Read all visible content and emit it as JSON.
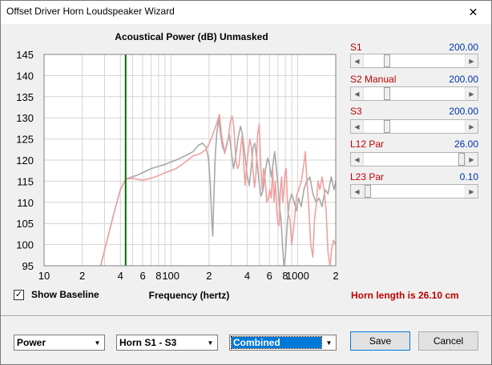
{
  "window": {
    "title": "Offset Driver Horn Loudspeaker Wizard",
    "close_glyph": "✕"
  },
  "chart_title": "Acoustical Power (dB)   Unmasked",
  "chart_data": {
    "type": "line",
    "title": "Acoustical Power (dB)   Unmasked",
    "xlabel": "Frequency (hertz)",
    "ylabel": "",
    "x_scale": "log",
    "xlim": [
      10,
      2000
    ],
    "ylim": [
      95,
      145
    ],
    "y_ticks": [
      95,
      100,
      105,
      110,
      115,
      120,
      125,
      130,
      135,
      140,
      145
    ],
    "x_tick_labels": [
      {
        "x": 10,
        "label": "10"
      },
      {
        "x": 20,
        "label": "2"
      },
      {
        "x": 40,
        "label": "4"
      },
      {
        "x": 60,
        "label": "6"
      },
      {
        "x": 80,
        "label": "8"
      },
      {
        "x": 100,
        "label": "100"
      },
      {
        "x": 200,
        "label": "2"
      },
      {
        "x": 400,
        "label": "4"
      },
      {
        "x": 600,
        "label": "6"
      },
      {
        "x": 800,
        "label": "8"
      },
      {
        "x": 1000,
        "label": "1000"
      },
      {
        "x": 2000,
        "label": "2"
      }
    ],
    "marker_x": 44,
    "series": [
      {
        "color": "#a8a8a8",
        "points": [
          [
            28,
            95
          ],
          [
            32,
            102
          ],
          [
            36,
            108
          ],
          [
            40,
            113
          ],
          [
            44,
            115.5
          ],
          [
            55,
            116.5
          ],
          [
            70,
            118
          ],
          [
            90,
            119
          ],
          [
            110,
            120
          ],
          [
            130,
            121
          ],
          [
            150,
            122
          ],
          [
            165,
            123.5
          ],
          [
            178,
            124
          ],
          [
            190,
            123
          ],
          [
            198,
            120.5
          ],
          [
            205,
            114
          ],
          [
            211,
            105
          ],
          [
            214,
            102
          ],
          [
            218,
            110
          ],
          [
            224,
            121
          ],
          [
            230,
            126
          ],
          [
            238,
            130
          ],
          [
            246,
            126.5
          ],
          [
            256,
            123
          ],
          [
            266,
            122
          ],
          [
            280,
            124.5
          ],
          [
            290,
            126
          ],
          [
            300,
            122
          ],
          [
            312,
            118
          ],
          [
            325,
            121
          ],
          [
            340,
            125.5
          ],
          [
            355,
            128
          ],
          [
            368,
            126
          ],
          [
            385,
            121
          ],
          [
            400,
            116.5
          ],
          [
            415,
            114
          ],
          [
            430,
            118
          ],
          [
            445,
            123
          ],
          [
            460,
            124
          ],
          [
            478,
            120
          ],
          [
            495,
            115
          ],
          [
            515,
            111.5
          ],
          [
            535,
            113
          ],
          [
            560,
            118
          ],
          [
            580,
            120.5
          ],
          [
            600,
            119
          ],
          [
            620,
            116
          ],
          [
            640,
            119
          ],
          [
            660,
            122
          ],
          [
            680,
            118
          ],
          [
            700,
            114
          ],
          [
            720,
            109
          ],
          [
            740,
            106
          ],
          [
            760,
            100
          ],
          [
            780,
            95
          ],
          [
            800,
            97
          ],
          [
            830,
            105
          ],
          [
            860,
            110
          ],
          [
            900,
            112
          ],
          [
            940,
            110
          ],
          [
            980,
            108
          ],
          [
            1020,
            111
          ],
          [
            1070,
            109
          ],
          [
            1120,
            113
          ],
          [
            1180,
            115
          ],
          [
            1250,
            116
          ],
          [
            1320,
            112
          ],
          [
            1400,
            110
          ],
          [
            1480,
            111
          ],
          [
            1560,
            109
          ],
          [
            1650,
            113
          ],
          [
            1740,
            112
          ],
          [
            1840,
            116
          ],
          [
            1940,
            113
          ],
          [
            2000,
            115
          ]
        ]
      },
      {
        "color": "#f0a0a0",
        "points": [
          [
            28,
            95
          ],
          [
            32,
            102
          ],
          [
            36,
            108
          ],
          [
            40,
            113
          ],
          [
            44,
            115.5
          ],
          [
            50,
            115.7
          ],
          [
            60,
            115.2
          ],
          [
            75,
            116
          ],
          [
            90,
            117
          ],
          [
            110,
            118
          ],
          [
            130,
            119.5
          ],
          [
            150,
            121
          ],
          [
            170,
            121.5
          ],
          [
            190,
            122.5
          ],
          [
            205,
            124.5
          ],
          [
            220,
            127
          ],
          [
            232,
            129
          ],
          [
            242,
            130.8
          ],
          [
            250,
            126.5
          ],
          [
            258,
            124
          ],
          [
            266,
            121.5
          ],
          [
            274,
            123
          ],
          [
            284,
            125
          ],
          [
            294,
            129
          ],
          [
            304,
            130.5
          ],
          [
            314,
            128
          ],
          [
            326,
            120
          ],
          [
            336,
            118
          ],
          [
            346,
            119
          ],
          [
            356,
            123
          ],
          [
            366,
            126
          ],
          [
            376,
            119
          ],
          [
            386,
            114
          ],
          [
            396,
            118
          ],
          [
            408,
            122
          ],
          [
            420,
            125
          ],
          [
            432,
            123
          ],
          [
            446,
            117
          ],
          [
            458,
            113.5
          ],
          [
            470,
            117
          ],
          [
            484,
            126
          ],
          [
            498,
            128.5
          ],
          [
            512,
            119
          ],
          [
            526,
            113
          ],
          [
            540,
            118
          ],
          [
            556,
            115
          ],
          [
            572,
            110
          ],
          [
            588,
            111
          ],
          [
            604,
            113
          ],
          [
            620,
            111
          ],
          [
            636,
            118
          ],
          [
            652,
            110
          ],
          [
            668,
            115
          ],
          [
            684,
            108
          ],
          [
            700,
            105
          ],
          [
            716,
            104.5
          ],
          [
            732,
            113
          ],
          [
            748,
            116
          ],
          [
            764,
            110
          ],
          [
            780,
            113
          ],
          [
            796,
            117
          ],
          [
            812,
            118
          ],
          [
            840,
            107.5
          ],
          [
            870,
            106
          ],
          [
            900,
            100
          ],
          [
            940,
            105
          ],
          [
            980,
            111.5
          ],
          [
            1020,
            113
          ],
          [
            1070,
            115
          ],
          [
            1120,
            119
          ],
          [
            1150,
            122
          ],
          [
            1180,
            116
          ],
          [
            1220,
            110
          ],
          [
            1270,
            100
          ],
          [
            1320,
            97
          ],
          [
            1360,
            106
          ],
          [
            1400,
            109
          ],
          [
            1450,
            115
          ],
          [
            1500,
            113
          ],
          [
            1560,
            116
          ],
          [
            1620,
            113
          ],
          [
            1680,
            108
          ],
          [
            1740,
            98
          ],
          [
            1800,
            95
          ],
          [
            1860,
            99
          ],
          [
            1920,
            101
          ],
          [
            2000,
            100
          ]
        ]
      }
    ]
  },
  "controls": [
    {
      "label": "S1",
      "value": "200.00",
      "position": 0.15
    },
    {
      "label": "S2  Manual",
      "value": "200.00",
      "position": 0.15
    },
    {
      "label": "S3",
      "value": "200.00",
      "position": 0.15
    },
    {
      "label": "L12  Par",
      "value": "26.00",
      "position": 0.99
    },
    {
      "label": "L23  Par",
      "value": "0.10",
      "position": 0.01
    }
  ],
  "show_baseline": {
    "label": "Show Baseline",
    "checked": true,
    "check_glyph": "✓"
  },
  "x_axis_label": "Frequency (hertz)",
  "horn_length_text": "Horn length is 26.10 cm",
  "dropdowns": {
    "mode": "Power",
    "section": "Horn S1 - S3",
    "view": "Combined"
  },
  "buttons": {
    "save": "Save",
    "cancel": "Cancel"
  }
}
